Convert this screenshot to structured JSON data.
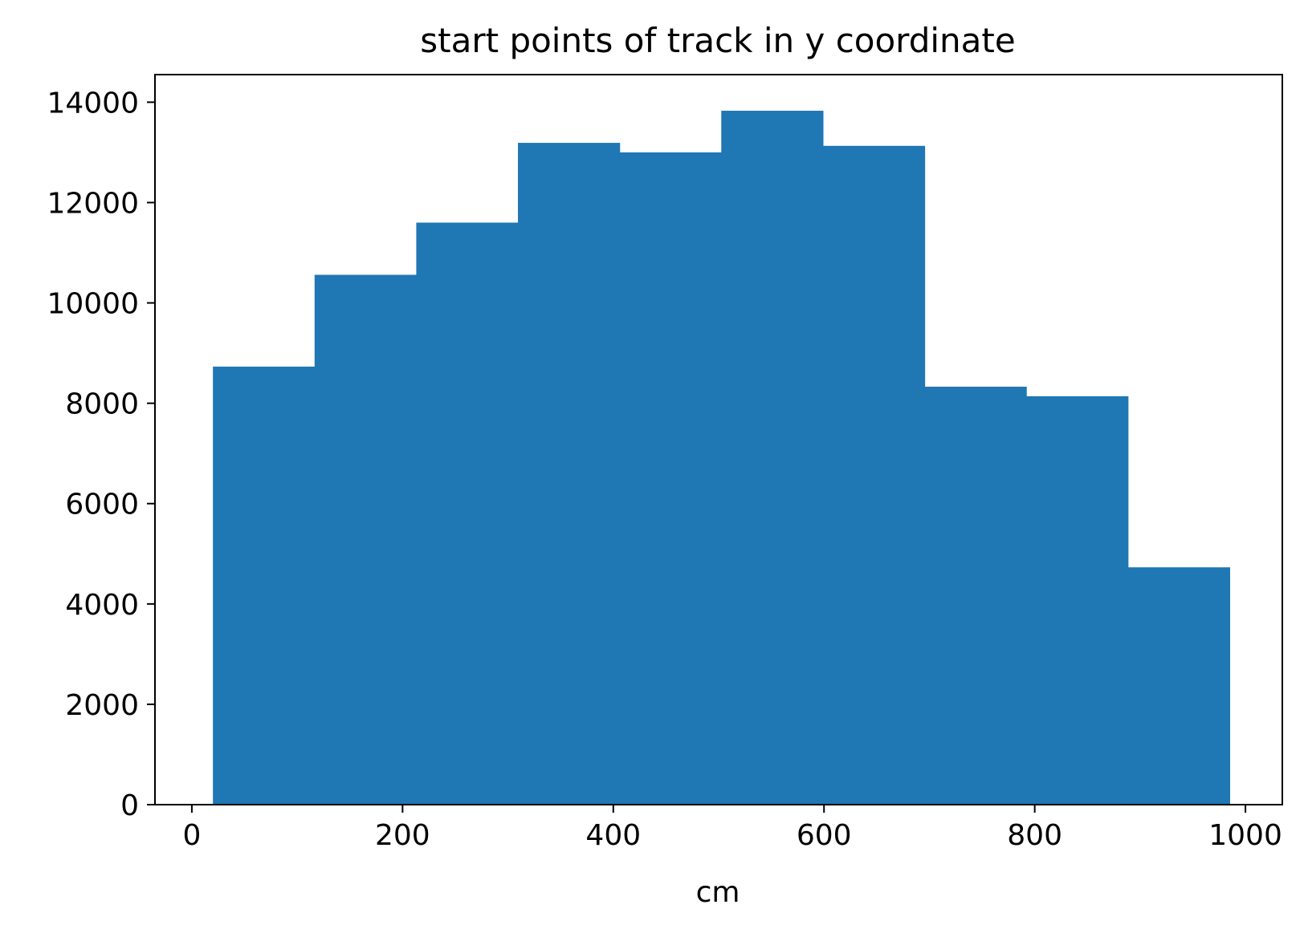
{
  "chart_data": {
    "type": "bar",
    "title": "start points of track in y coordinate",
    "xlabel": "cm",
    "ylabel": "",
    "xlim": [
      -35,
      1035
    ],
    "ylim": [
      0,
      14550
    ],
    "xticks": [
      0,
      200,
      400,
      600,
      800,
      1000
    ],
    "yticks": [
      0,
      2000,
      4000,
      6000,
      8000,
      10000,
      12000,
      14000
    ],
    "bin_edges": [
      20,
      116.5,
      213,
      309.5,
      406,
      502.5,
      599,
      695.5,
      792,
      888.5,
      985
    ],
    "values": [
      8730,
      10560,
      11600,
      13190,
      13000,
      13830,
      13130,
      8330,
      8140,
      4730
    ],
    "bar_color": "#1f77b4",
    "grid": false,
    "legend": "none"
  }
}
